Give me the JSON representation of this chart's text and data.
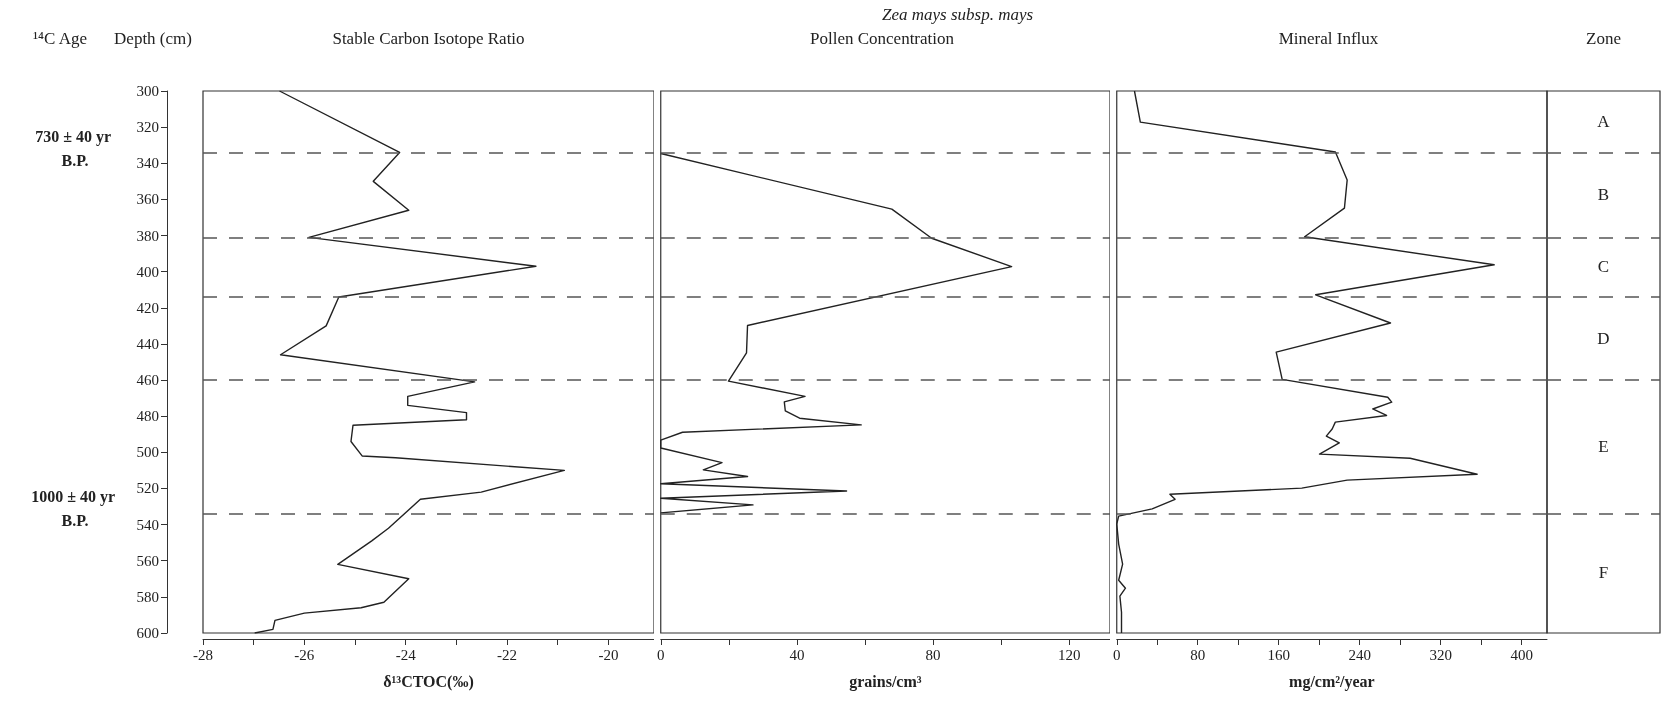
{
  "chart_data": [
    {
      "type": "line",
      "title": "Stable Carbon Isotope Ratio",
      "xlabel": "δ¹³CTOC(‰)",
      "ylabel": "Depth (cm)",
      "color": "#222222",
      "annotations": [
        "¹⁴C Age",
        "730 ± 40 yr B.P.",
        "1000 ± 40 yr B.P."
      ],
      "x": [
        -26.49,
        -24.12,
        -24.64,
        -23.94,
        -25.91,
        -21.43,
        -25.32,
        -25.57,
        -26.47,
        -22.64,
        -23.96,
        -23.96,
        -22.8,
        -22.8,
        -25.04,
        -25.08,
        -24.86,
        -24.2,
        -20.87,
        -22.51,
        -23.71,
        -24.34,
        -24.67,
        -25.34,
        -23.94,
        -24.43,
        -24.88,
        -26.0,
        -26.58,
        -26.62,
        -26.98
      ],
      "values": [
        300,
        334,
        350,
        366,
        381,
        397,
        414,
        430,
        446,
        461,
        469,
        474,
        478,
        482,
        485,
        494,
        502,
        503,
        510,
        522,
        526,
        542,
        549,
        562,
        570,
        583,
        586,
        589,
        593,
        598,
        600
      ],
      "xlim": [
        -28,
        -19.1
      ],
      "xticks": [
        -28,
        {
          "value": -27,
          "label": null
        },
        -26,
        {
          "value": -25,
          "label": null
        },
        -24,
        {
          "value": -23,
          "label": null
        },
        -22,
        {
          "value": -21,
          "label": null
        },
        -20
      ],
      "ylim": [
        600,
        300
      ],
      "yticks": [
        300,
        320,
        340,
        360,
        380,
        400,
        420,
        440,
        460,
        480,
        500,
        520,
        540,
        560,
        580,
        600
      ],
      "ref_lines": [
        {
          "axis": "y",
          "value": 334,
          "line_style": "dashed"
        },
        {
          "axis": "y",
          "value": 381,
          "line_style": "dashed"
        },
        {
          "axis": "y",
          "value": 414,
          "line_style": "dashed"
        },
        {
          "axis": "y",
          "value": 460,
          "line_style": "dashed"
        },
        {
          "axis": "y",
          "value": 534,
          "line_style": "dashed"
        }
      ],
      "grid": false,
      "marker": "none",
      "line_style": "solid"
    },
    {
      "type": "line",
      "title": "Pollen Concentration",
      "subtitle": "Zea mays subsp. mays",
      "xlabel": "grains/cm³",
      "color": "#222222",
      "x": [
        0,
        67.9,
        79.6,
        103.1,
        25.5,
        25.2,
        19.9,
        42.4,
        36.3,
        36.6,
        40.8,
        58.9,
        6.4,
        0,
        0,
        18,
        12.5,
        25.5,
        0,
        54.6,
        0,
        27.1,
        0
      ],
      "values": [
        334.6,
        365.4,
        381.5,
        397.2,
        429.8,
        444.9,
        460.6,
        469,
        472.1,
        477.1,
        481.1,
        484.8,
        488.9,
        493.2,
        497.6,
        505.7,
        509.7,
        513.4,
        517.4,
        521.4,
        525.4,
        529.1,
        533.5
      ],
      "xlim": [
        0,
        132
      ],
      "xticks": [
        0,
        {
          "value": 20,
          "label": null
        },
        40,
        {
          "value": 60,
          "label": null
        },
        80,
        {
          "value": 100,
          "label": null
        },
        120
      ],
      "ylim": [
        600,
        300
      ],
      "tick_labels": "x",
      "ref_lines": [
        {
          "axis": "y",
          "value": 334,
          "line_style": "dashed"
        },
        {
          "axis": "y",
          "value": 381,
          "line_style": "dashed"
        },
        {
          "axis": "y",
          "value": 414,
          "line_style": "dashed"
        },
        {
          "axis": "y",
          "value": 460,
          "line_style": "dashed"
        },
        {
          "axis": "y",
          "value": 534,
          "line_style": "dashed"
        }
      ],
      "grid": false,
      "marker": "none",
      "line_style": "solid"
    },
    {
      "type": "line",
      "title": "Mineral Influx",
      "xlabel": "mg/cm²/year",
      "color": "#222222",
      "annotations": [
        "Zone",
        "A",
        "B",
        "C",
        "D",
        "E",
        "F"
      ],
      "x": [
        17.5,
        23.3,
        216,
        227.6,
        224.9,
        185.6,
        372.8,
        196.5,
        270.4,
        157.5,
        163.4,
        267.7,
        271.6,
        252.9,
        266.5,
        215.9,
        212.8,
        207,
        219.8,
        200.3,
        289.8,
        356,
        227.6,
        182.8,
        52.5,
        57.6,
        35,
        1.9,
        0,
        1.9,
        5.8,
        1.9,
        8.6,
        3.1,
        4.7,
        4.7
      ],
      "values": [
        300,
        317.2,
        333.8,
        349.3,
        364.8,
        380.7,
        396.2,
        412.8,
        428.4,
        444.5,
        459.6,
        469.5,
        472.2,
        476,
        479.6,
        483.3,
        487.1,
        491,
        494.8,
        501,
        503.3,
        512.1,
        515.4,
        519.8,
        523.2,
        526,
        531.3,
        535.3,
        539.7,
        550.8,
        561.9,
        570.8,
        575.2,
        579.6,
        588.5,
        600
      ],
      "xlim": [
        0,
        425
      ],
      "xticks": [
        0,
        {
          "value": 40,
          "label": null
        },
        80,
        {
          "value": 120,
          "label": null
        },
        160,
        {
          "value": 200,
          "label": null
        },
        240,
        {
          "value": 280,
          "label": null
        },
        320,
        {
          "value": 360,
          "label": null
        },
        400
      ],
      "ylim": [
        600,
        300
      ],
      "tick_labels": "x",
      "ref_lines": [
        {
          "axis": "y",
          "value": 334,
          "line_style": "dashed"
        },
        {
          "axis": "y",
          "value": 381,
          "line_style": "dashed"
        },
        {
          "axis": "y",
          "value": 414,
          "line_style": "dashed"
        },
        {
          "axis": "y",
          "value": 460,
          "line_style": "dashed"
        },
        {
          "axis": "y",
          "value": 534,
          "line_style": "dashed"
        }
      ],
      "grid": false,
      "marker": "none",
      "line_style": "solid"
    }
  ]
}
